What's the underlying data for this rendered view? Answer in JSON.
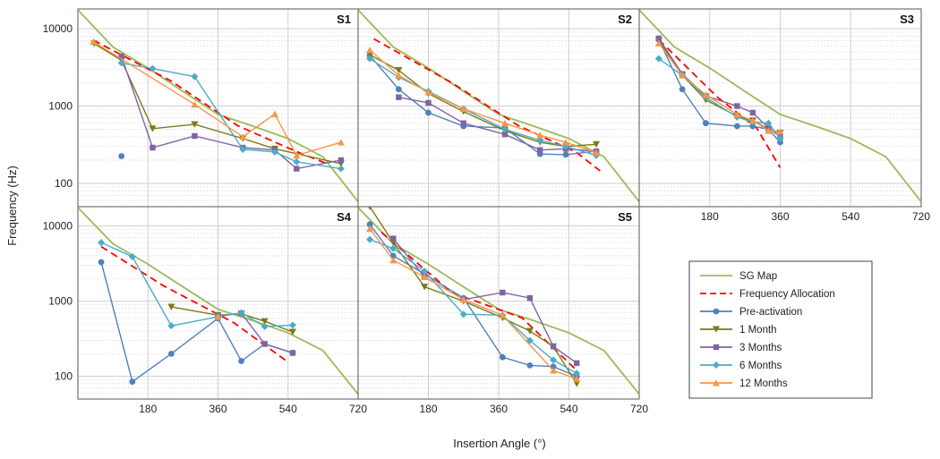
{
  "chart_data": {
    "type": "line",
    "ylabel": "Frequency (Hz)",
    "xlabel": "Insertion Angle (°)",
    "yscale": "log",
    "ylim": [
      50,
      18000
    ],
    "xlim": [
      0,
      720
    ],
    "xticks": [
      180,
      360,
      540,
      720
    ],
    "yticks": [
      100,
      1000,
      10000
    ],
    "xtick_labels": [
      "180",
      "360",
      "540",
      "720"
    ],
    "ytick_labels": [
      "100",
      "1000",
      "10000"
    ],
    "grid": true,
    "legend": {
      "position": "bottom-right",
      "entries": [
        "SG Map",
        "Frequency Allocation",
        "Pre-activation",
        "1 Month",
        "3 Months",
        "6 Months",
        "12 Months"
      ]
    },
    "series_styles": [
      {
        "name": "SG Map",
        "color": "#9BBB59",
        "dash": "solid",
        "marker": "none"
      },
      {
        "name": "Frequency Allocation",
        "color": "#FF0000",
        "dash": "dashed",
        "marker": "none"
      },
      {
        "name": "Pre-activation",
        "color": "#4F81BD",
        "dash": "solid",
        "marker": "circle"
      },
      {
        "name": "1 Month",
        "color": "#7A7A18",
        "dash": "solid",
        "marker": "triangle-down"
      },
      {
        "name": "3 Months",
        "color": "#8064A2",
        "dash": "solid",
        "marker": "square"
      },
      {
        "name": "6 Months",
        "color": "#4BACC6",
        "dash": "solid",
        "marker": "diamond"
      },
      {
        "name": "12 Months",
        "color": "#F79646",
        "dash": "solid",
        "marker": "triangle-up"
      }
    ],
    "sg_map": {
      "x": [
        0,
        90,
        180,
        270,
        360,
        450,
        540,
        630,
        720
      ],
      "y": [
        17500,
        5800,
        3100,
        1550,
        780,
        550,
        380,
        220,
        58
      ]
    },
    "panels": [
      {
        "title": "S1",
        "series": [
          {
            "name": "Frequency Allocation",
            "x": [
              40,
              240,
              410,
              560,
              640
            ],
            "y": [
              7100,
              2100,
              560,
              260,
              180
            ]
          },
          {
            "name": "Pre-activation",
            "x": [
              112
            ],
            "y": [
              225
            ]
          },
          {
            "name": "1 Month",
            "x": [
              42,
              112,
              192,
              300,
              424,
              506,
              676
            ],
            "y": [
              6400,
              3900,
              510,
              580,
              380,
              280,
              180
            ]
          },
          {
            "name": "3 Months",
            "x": [
              112,
              192,
              300,
              424,
              506,
              562,
              676
            ],
            "y": [
              4400,
              290,
              410,
              290,
              270,
              155,
              200
            ]
          },
          {
            "name": "6 Months",
            "x": [
              112,
              192,
              300,
              424,
              506,
              562,
              676
            ],
            "y": [
              3600,
              3050,
              2400,
              275,
              255,
              190,
              155
            ]
          },
          {
            "name": "12 Months",
            "x": [
              40,
              300,
              424,
              506,
              562,
              676
            ],
            "y": [
              6800,
              1050,
              400,
              790,
              230,
              340
            ]
          }
        ]
      },
      {
        "title": "S2",
        "series": [
          {
            "name": "Frequency Allocation",
            "x": [
              40,
              240,
              410,
              560,
              620
            ],
            "y": [
              7400,
              2000,
              560,
              250,
              145
            ]
          },
          {
            "name": "Pre-activation",
            "x": [
              30,
              104,
              180,
              270,
              376,
              466,
              532,
              610
            ],
            "y": [
              4500,
              1650,
              820,
              550,
              520,
              240,
              235,
              260
            ]
          },
          {
            "name": "1 Month",
            "x": [
              30,
              104,
              180,
              270,
              376,
              466,
              532,
              610
            ],
            "y": [
              4600,
              2900,
              1450,
              850,
              480,
              340,
              300,
              320
            ]
          },
          {
            "name": "3 Months",
            "x": [
              104,
              180,
              270,
              376,
              466,
              532,
              610
            ],
            "y": [
              1300,
              1100,
              600,
              430,
              270,
              280,
              260
            ]
          },
          {
            "name": "6 Months",
            "x": [
              30,
              104,
              180,
              270,
              376,
              466,
              532,
              610
            ],
            "y": [
              4100,
              2350,
              1550,
              920,
              500,
              360,
              300,
              230
            ]
          },
          {
            "name": "12 Months",
            "x": [
              30,
              104,
              180,
              270,
              376,
              466,
              532,
              610
            ],
            "y": [
              5300,
              2500,
              1500,
              920,
              600,
              420,
              340,
              250
            ]
          }
        ]
      },
      {
        "title": "S3",
        "series": [
          {
            "name": "Frequency Allocation",
            "x": [
              50,
              200,
              300,
              360
            ],
            "y": [
              7200,
              1300,
              520,
              160
            ]
          },
          {
            "name": "Pre-activation",
            "x": [
              50,
              110,
              170,
              250,
              290,
              330,
              360
            ],
            "y": [
              7200,
              1650,
              600,
              550,
              550,
              500,
              340
            ]
          },
          {
            "name": "1 Month",
            "x": [
              50,
              110,
              170,
              250,
              290,
              330,
              360
            ],
            "y": [
              7000,
              2500,
              1200,
              740,
              650,
              500,
              450
            ]
          },
          {
            "name": "3 Months",
            "x": [
              50,
              110,
              170,
              250,
              290,
              330,
              360
            ],
            "y": [
              7500,
              2600,
              1350,
              1000,
              820,
              520,
              400
            ]
          },
          {
            "name": "6 Months",
            "x": [
              50,
              110,
              170,
              250,
              290,
              330,
              360
            ],
            "y": [
              4100,
              2500,
              1300,
              720,
              620,
              600,
              380
            ]
          },
          {
            "name": "12 Months",
            "x": [
              50,
              110,
              170,
              250,
              290,
              330,
              360
            ],
            "y": [
              6500,
              2500,
              1400,
              780,
              650,
              480,
              470
            ]
          }
        ]
      },
      {
        "title": "S4",
        "series": [
          {
            "name": "Frequency Allocation",
            "x": [
              60,
              220,
              400,
              540
            ],
            "y": [
              5300,
              1600,
              520,
              155
            ]
          },
          {
            "name": "Pre-activation",
            "x": [
              60,
              140,
              240,
              360,
              420,
              480,
              552
            ],
            "y": [
              3300,
              85,
              200,
              590,
              160,
              270,
              205
            ]
          },
          {
            "name": "1 Month",
            "x": [
              240,
              360,
              420,
              480,
              552
            ],
            "y": [
              840,
              650,
              680,
              540,
              390
            ]
          },
          {
            "name": "3 Months",
            "x": [
              360,
              420,
              480,
              552
            ],
            "y": [
              640,
              690,
              270,
              205
            ]
          },
          {
            "name": "6 Months",
            "x": [
              60,
              140,
              240,
              360,
              420,
              480,
              552
            ],
            "y": [
              6000,
              3900,
              470,
              620,
              700,
              460,
              480
            ]
          },
          {
            "name": "12 Months",
            "x": [
              360
            ],
            "y": [
              620
            ]
          }
        ]
      },
      {
        "title": "S5",
        "series": [
          {
            "name": "Frequency Allocation",
            "x": [
              60,
              240,
              420,
              560
            ],
            "y": [
              8200,
              1300,
              600,
              120
            ]
          },
          {
            "name": "Pre-activation",
            "x": [
              30,
              90,
              170,
              270,
              370,
              440,
              500,
              560
            ],
            "y": [
              10500,
              4000,
              2300,
              1100,
              180,
              140,
              135,
              100
            ]
          },
          {
            "name": "1 Month",
            "x": [
              30,
              90,
              170,
              270,
              370,
              440,
              500,
              560
            ],
            "y": [
              18000,
              6000,
              1550,
              1000,
              600,
              400,
              250,
              80
            ]
          },
          {
            "name": "3 Months",
            "x": [
              90,
              170,
              270,
              370,
              440,
              500,
              560
            ],
            "y": [
              6800,
              2100,
              1050,
              1300,
              1100,
              250,
              150
            ]
          },
          {
            "name": "6 Months",
            "x": [
              30,
              90,
              170,
              270,
              370,
              440,
              500,
              560
            ],
            "y": [
              6600,
              5000,
              2500,
              670,
              650,
              300,
              165,
              110
            ]
          },
          {
            "name": "12 Months",
            "x": [
              30,
              90,
              170,
              270,
              370,
              500,
              560
            ],
            "y": [
              9200,
              3500,
              2100,
              1050,
              650,
              120,
              92
            ]
          }
        ]
      }
    ]
  }
}
